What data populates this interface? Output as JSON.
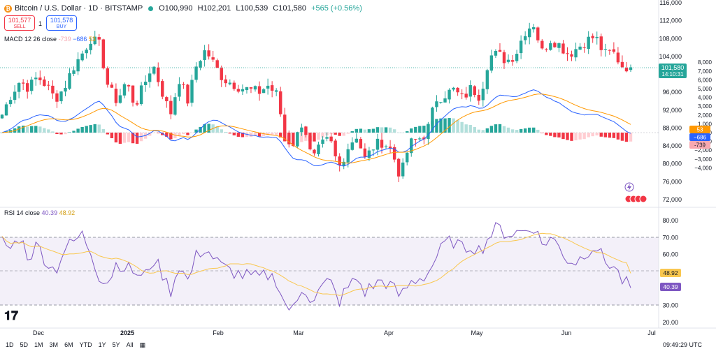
{
  "header": {
    "symbol": "Bitcoin / U.S. Dollar · 1D · BITSTAMP",
    "open": "O100,990",
    "high": "H102,201",
    "low": "L100,539",
    "close": "C101,580",
    "change": "+565 (+0.56%)",
    "coin_glyph": "₿"
  },
  "trade": {
    "sell_price": "101,577",
    "sell_label": "SELL",
    "spread": "1",
    "buy_price": "101,578",
    "buy_label": "BUY"
  },
  "legends": {
    "macd_title": "MACD 12 26 close",
    "macd_hist": "-739",
    "macd_line": "−686",
    "macd_signal": "53",
    "rsi_title": "RSI 14 close",
    "rsi_value": "40.39",
    "rsi_ma": "48.92"
  },
  "timeframes": [
    "1D",
    "5D",
    "1M",
    "3M",
    "6M",
    "YTD",
    "1Y",
    "5Y",
    "All"
  ],
  "clock": "09:49:29 UTC",
  "colors": {
    "up": "#26a69a",
    "down": "#f23645",
    "macd": "#2962ff",
    "signal": "#ff9800",
    "rsi": "#7e57c2",
    "rsi_ma": "#f9c74f"
  },
  "chart_data": [
    {
      "type": "candlestick",
      "title": "Bitcoin / U.S. Dollar · 1D · BITSTAMP",
      "ylim": [
        72000,
        116000
      ],
      "price_ticks": [
        "116,000",
        "112,000",
        "108,000",
        "104,000",
        "100,000",
        "96,000",
        "92,000",
        "88,000",
        "84,000",
        "80,000",
        "76,000",
        "72,000"
      ],
      "macd_ticks": [
        "8,000",
        "7,000",
        "6,000",
        "5,000",
        "4,000",
        "3,000",
        "2,000",
        "1,000",
        "0",
        "−1,000",
        "−2,000",
        "−3,000",
        "−4,000"
      ],
      "x_ticks": [
        "Dec",
        "2025",
        "Feb",
        "Mar",
        "Apr",
        "May",
        "Jun",
        "Jul"
      ],
      "last_price": "101,580",
      "countdown": "14:10:31",
      "anchors_close": [
        91000,
        95500,
        98500,
        97000,
        99500,
        97500,
        94500,
        97000,
        101500,
        104500,
        108000,
        106500,
        97000,
        94000,
        98500,
        93000,
        97500,
        102500,
        96500,
        91000,
        99000,
        94000,
        102500,
        105500,
        102000,
        99000,
        98000,
        97000,
        96500,
        96000,
        97500,
        95500,
        86000,
        84500,
        90000,
        80500,
        84000,
        85500,
        79000,
        83500,
        86500,
        81000,
        84000,
        85000,
        83000,
        77000,
        84500,
        85500,
        87000,
        94500,
        95500,
        96500,
        94500,
        97000,
        95000,
        104000,
        104500,
        103000,
        104500,
        109500,
        111500,
        105000,
        108000,
        106500,
        104500,
        106000,
        107500,
        108500,
        104500,
        105000,
        102000,
        101580
      ],
      "rsi_anchors": [
        68,
        63,
        71,
        58,
        66,
        56,
        50,
        63,
        67,
        72,
        62,
        47,
        44,
        56,
        52,
        50,
        45,
        58,
        50,
        38,
        54,
        44,
        60,
        64,
        57,
        52,
        50,
        48,
        47,
        46,
        48,
        45,
        30,
        27,
        42,
        33,
        40,
        45,
        32,
        40,
        46,
        38,
        42,
        45,
        41,
        35,
        43,
        46,
        48,
        58,
        66,
        68,
        63,
        66,
        62,
        71,
        76,
        72,
        73,
        74,
        77,
        66,
        70,
        64,
        56,
        56,
        62,
        66,
        56,
        54,
        45,
        40.39
      ],
      "rsi_ticks": [
        "80.00",
        "70.00",
        "60.00",
        "50.00",
        "40.00",
        "30.00",
        "20.00"
      ],
      "rsi_levels": [
        70,
        50,
        30
      ],
      "macd_hist_last": -739,
      "macd_last": -686,
      "signal_last": 53,
      "rsi_last": 40.39,
      "rsi_ma_last": 48.92
    }
  ]
}
